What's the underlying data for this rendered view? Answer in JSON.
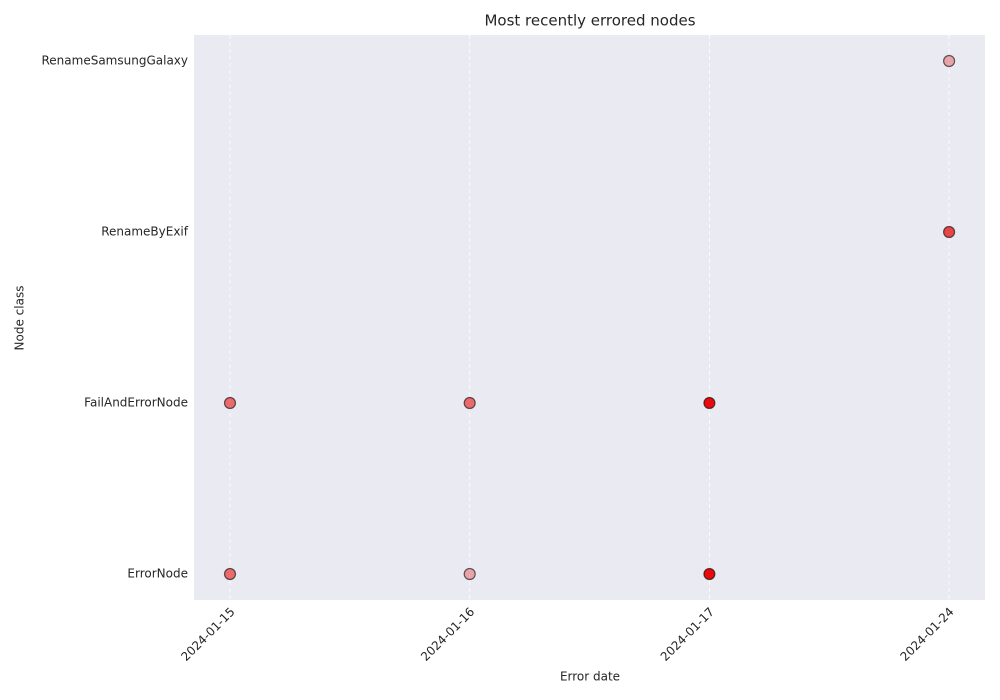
{
  "chart_data": {
    "type": "scatter",
    "title": "Most recently errored nodes",
    "xlabel": "Error date",
    "ylabel": "Node class",
    "x_categories": [
      "2024-01-15",
      "2024-01-16",
      "2024-01-17",
      "2024-01-24"
    ],
    "y_categories": [
      "ErrorNode",
      "FailAndErrorNode",
      "RenameByExif",
      "RenameSamsungGalaxy"
    ],
    "points": [
      {
        "x": "2024-01-15",
        "y": "ErrorNode",
        "color": "rgba(230,0,0,0.55)"
      },
      {
        "x": "2024-01-16",
        "y": "ErrorNode",
        "color": "rgba(230,0,0,0.3)"
      },
      {
        "x": "2024-01-17",
        "y": "ErrorNode",
        "color": "rgba(230,0,0,0.95)"
      },
      {
        "x": "2024-01-15",
        "y": "FailAndErrorNode",
        "color": "rgba(230,0,0,0.55)"
      },
      {
        "x": "2024-01-16",
        "y": "FailAndErrorNode",
        "color": "rgba(230,0,0,0.55)"
      },
      {
        "x": "2024-01-17",
        "y": "FailAndErrorNode",
        "color": "rgba(230,0,0,0.95)"
      },
      {
        "x": "2024-01-24",
        "y": "RenameByExif",
        "color": "rgba(230,0,0,0.7)"
      },
      {
        "x": "2024-01-24",
        "y": "RenameSamsungGalaxy",
        "color": "rgba(230,0,0,0.3)"
      }
    ],
    "grid": true,
    "background": "#eaeaf2"
  }
}
